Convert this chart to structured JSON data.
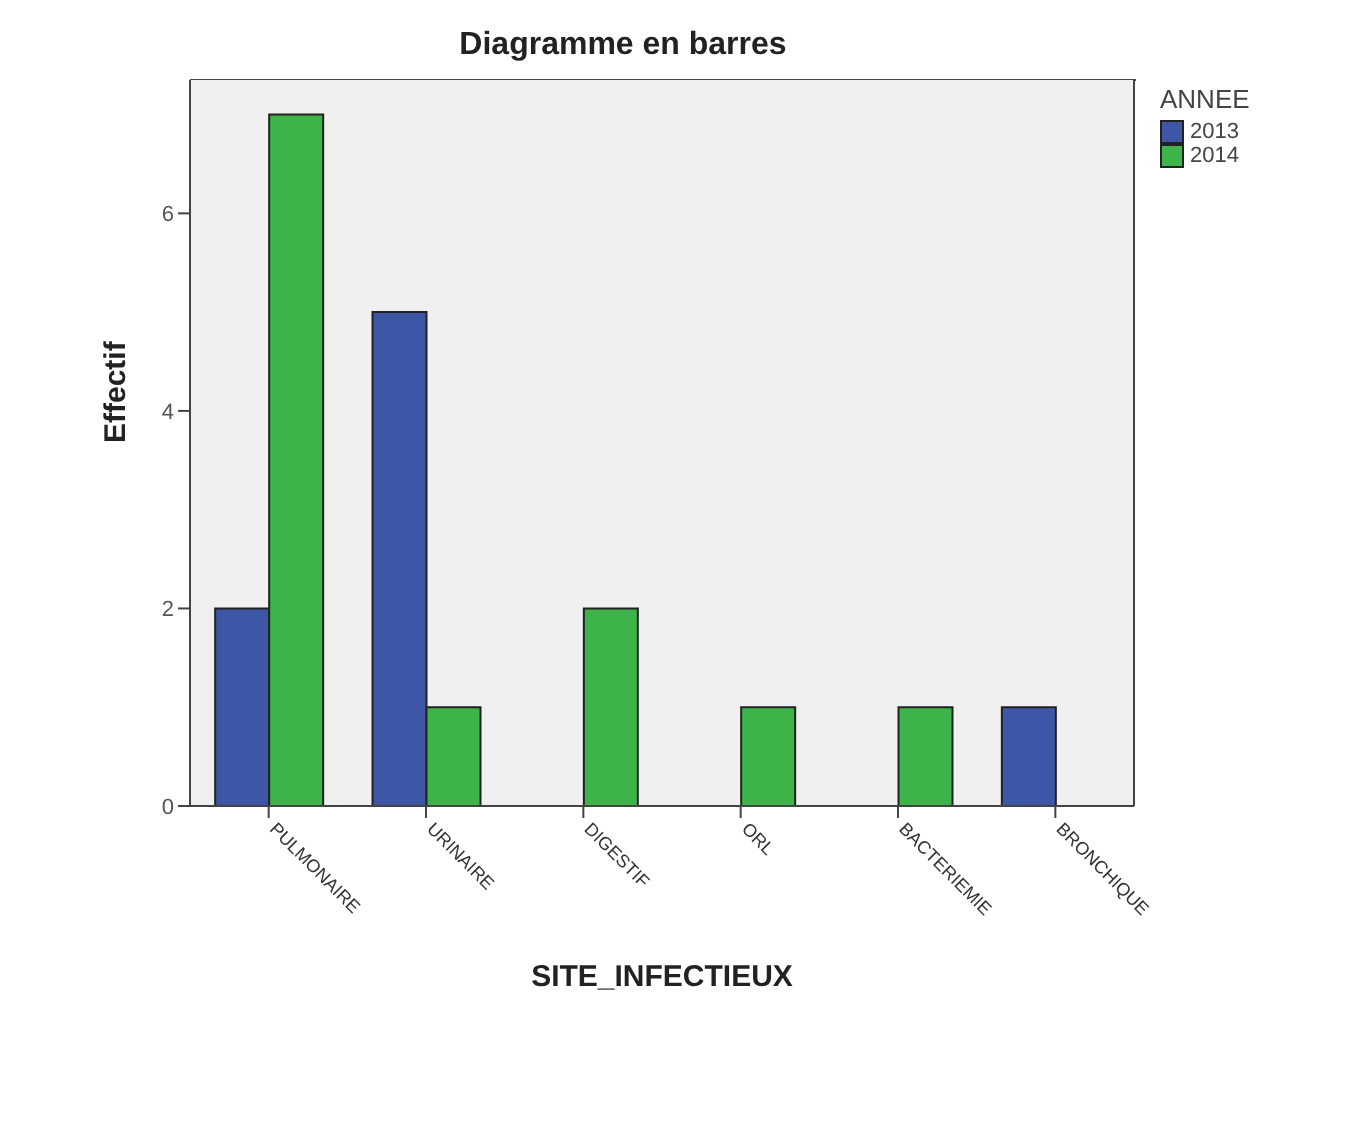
{
  "chart_data": {
    "type": "bar",
    "title": "Diagramme en barres",
    "xlabel": "SITE_INFECTIEUX",
    "ylabel": "Effectif",
    "legend_title": "ANNEE",
    "categories": [
      "PULMONAIRE",
      "URINAIRE",
      "DIGESTIF",
      "ORL",
      "BACTERIEMIE",
      "BRONCHIQUE"
    ],
    "series": [
      {
        "name": "2013",
        "color": "#3d56a6",
        "values": [
          2,
          5,
          null,
          null,
          null,
          1
        ]
      },
      {
        "name": "2014",
        "color": "#3cb44a",
        "values": [
          7,
          1,
          2,
          1,
          1,
          null
        ]
      }
    ],
    "ylim": [
      0,
      7.35
    ],
    "yticks": [
      0,
      2,
      4,
      6
    ],
    "legend": "top right"
  }
}
